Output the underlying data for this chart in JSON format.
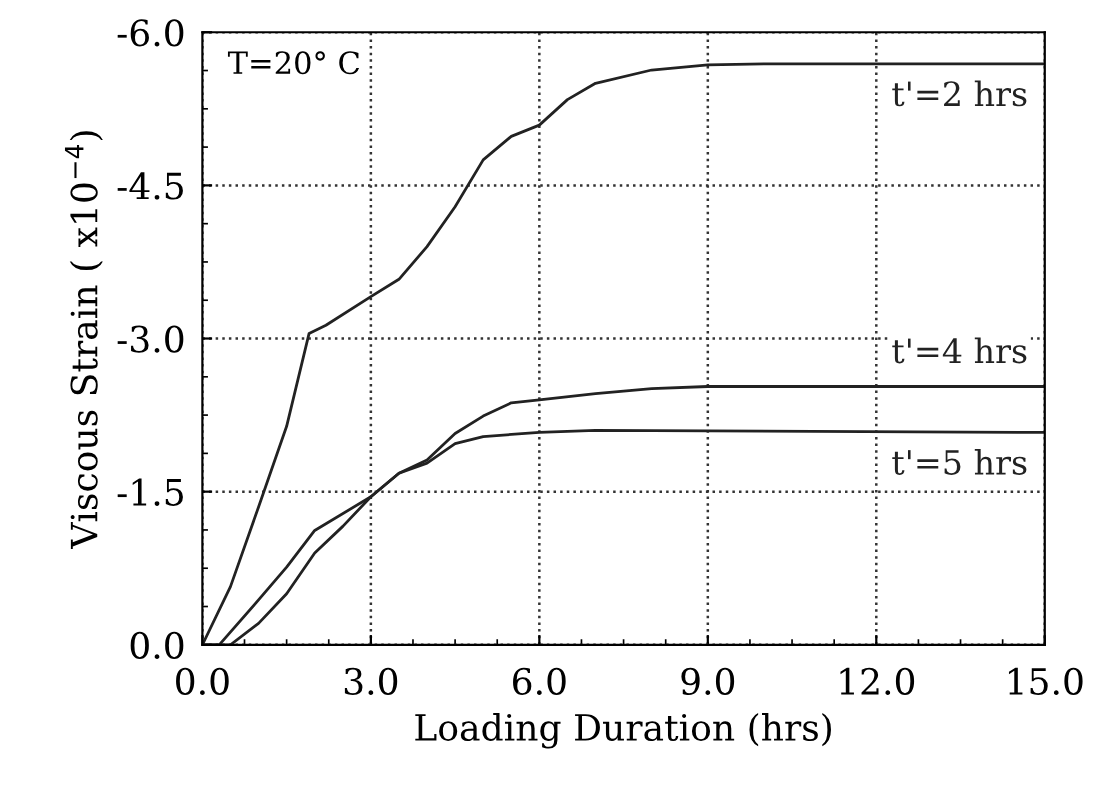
{
  "chart_data": {
    "type": "line",
    "xlabel": "Loading Duration (hrs)",
    "ylabel": "Viscous Strain ( x10$^{−4}$)",
    "annotations": [
      "T=20° C"
    ],
    "xlim": [
      0,
      15
    ],
    "xticks": [
      {
        "value": 0,
        "label": "0.0"
      },
      {
        "value": 3,
        "label": "3.0"
      },
      {
        "value": 6,
        "label": "6.0"
      },
      {
        "value": 9,
        "label": "9.0"
      },
      {
        "value": 12,
        "label": "12.0"
      },
      {
        "value": 15,
        "label": "15.0"
      }
    ],
    "ylim": [
      0,
      -6
    ],
    "yticks": [
      {
        "value": 0,
        "label": "0.0"
      },
      {
        "value": -1.5,
        "label": "-1.5"
      },
      {
        "value": -3,
        "label": "-3.0"
      },
      {
        "value": -4.5,
        "label": "-4.5"
      },
      {
        "value": -6,
        "label": "-6.0"
      }
    ],
    "grid": true,
    "marker": "none",
    "line_style": "solid",
    "legend": false,
    "series": [
      {
        "name": "t'=2 hrs",
        "color": "#222222",
        "x": [
          0,
          0.5,
          1,
          1.5,
          1.9,
          2.2,
          3,
          3.5,
          4,
          4.5,
          5,
          5.5,
          6,
          6.5,
          7,
          8,
          9,
          10,
          15
        ],
        "values": [
          0,
          -0.57,
          -1.35,
          -2.14,
          -3.05,
          -3.13,
          -3.41,
          -3.58,
          -3.9,
          -4.29,
          -4.75,
          -4.98,
          -5.09,
          -5.34,
          -5.5,
          -5.63,
          -5.68,
          -5.69,
          -5.69
        ]
      },
      {
        "name": "t'=4 hrs",
        "color": "#222222",
        "x": [
          0,
          0.3,
          1,
          1.5,
          2,
          3,
          3.5,
          4,
          4.5,
          5,
          5.5,
          6,
          7,
          8,
          9,
          15
        ],
        "values": [
          0,
          0,
          -0.44,
          -0.76,
          -1.12,
          -1.45,
          -1.68,
          -1.81,
          -2.07,
          -2.24,
          -2.37,
          -2.4,
          -2.46,
          -2.51,
          -2.53,
          -2.53
        ]
      },
      {
        "name": "t'=5 hrs",
        "color": "#222222",
        "x": [
          0,
          0.5,
          1,
          1.5,
          2,
          2.5,
          3,
          3.5,
          4,
          4.5,
          5,
          6,
          7,
          15
        ],
        "values": [
          0,
          0,
          -0.21,
          -0.5,
          -0.9,
          -1.16,
          -1.45,
          -1.68,
          -1.78,
          -1.97,
          -2.04,
          -2.08,
          -2.1,
          -2.08
        ]
      }
    ]
  }
}
